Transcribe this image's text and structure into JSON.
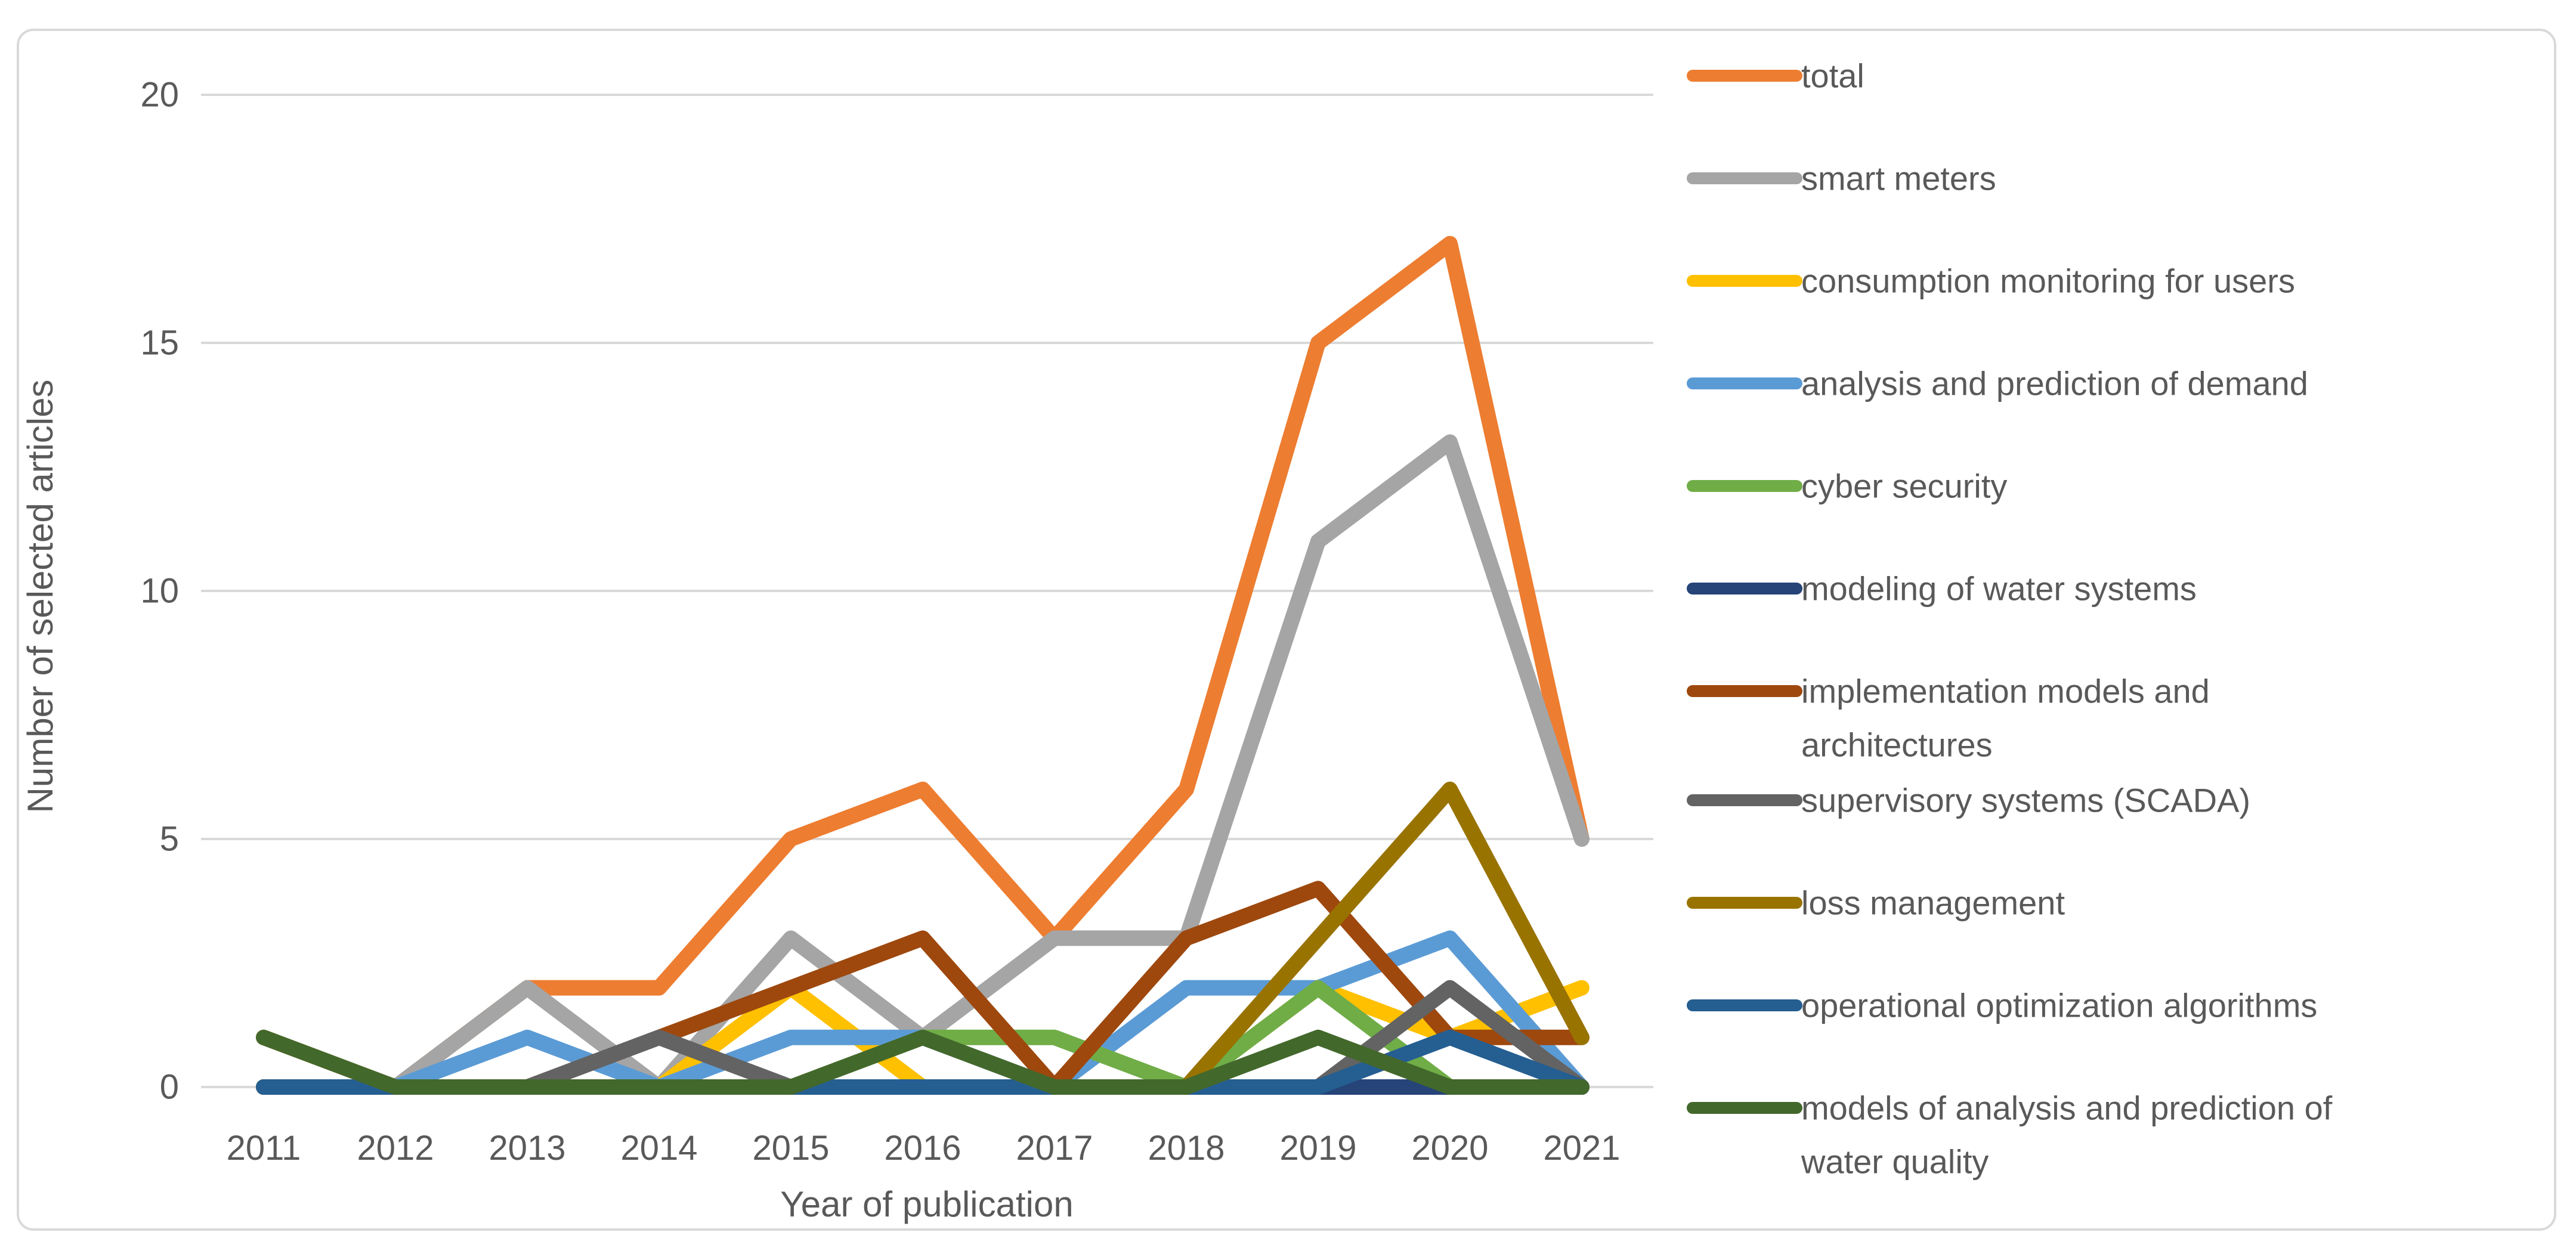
{
  "chart_data": {
    "type": "line",
    "title": "",
    "xlabel": "Year of publication",
    "ylabel": "Number of selected articles",
    "x": [
      2011,
      2012,
      2013,
      2014,
      2015,
      2016,
      2017,
      2018,
      2019,
      2020,
      2021
    ],
    "ylim": [
      0,
      20
    ],
    "yticks": [
      0,
      5,
      10,
      15,
      20
    ],
    "grid": true,
    "legend_position": "right",
    "series": [
      {
        "name": "total",
        "color": "#ED7D31",
        "values": [
          1,
          0,
          2,
          2,
          5,
          6,
          3,
          6,
          15,
          17,
          5
        ]
      },
      {
        "name": "smart meters",
        "color": "#A5A5A5",
        "values": [
          0,
          0,
          2,
          0,
          3,
          1,
          3,
          3,
          11,
          13,
          5
        ]
      },
      {
        "name": "consumption monitoring for users",
        "color": "#FFC000",
        "values": [
          0,
          0,
          0,
          0,
          2,
          0,
          0,
          0,
          2,
          1,
          2
        ]
      },
      {
        "name": "analysis and prediction of demand",
        "color": "#5B9BD5",
        "values": [
          0,
          0,
          1,
          0,
          1,
          1,
          0,
          2,
          2,
          3,
          0
        ]
      },
      {
        "name": "cyber security",
        "color": "#70AD47",
        "values": [
          0,
          0,
          0,
          0,
          0,
          1,
          1,
          0,
          2,
          0,
          0
        ]
      },
      {
        "name": "modeling of water systems",
        "color": "#264478",
        "values": [
          0,
          0,
          0,
          0,
          0,
          0,
          0,
          0,
          0,
          0,
          0
        ]
      },
      {
        "name": "implementation models and architectures",
        "color": "#9E480E",
        "values": [
          0,
          0,
          0,
          1,
          2,
          3,
          0,
          3,
          4,
          1,
          1
        ]
      },
      {
        "name": "supervisory systems (SCADA)",
        "color": "#636363",
        "values": [
          0,
          0,
          0,
          1,
          0,
          0,
          0,
          0,
          0,
          2,
          0
        ]
      },
      {
        "name": "loss management",
        "color": "#997300",
        "values": [
          0,
          0,
          0,
          0,
          0,
          0,
          0,
          0,
          3,
          6,
          1
        ]
      },
      {
        "name": "operational optimization algorithms",
        "color": "#255E91",
        "values": [
          0,
          0,
          0,
          0,
          0,
          0,
          0,
          0,
          0,
          1,
          0
        ]
      },
      {
        "name": "models of analysis and prediction of water quality",
        "color": "#43682B",
        "values": [
          1,
          0,
          0,
          0,
          0,
          1,
          0,
          0,
          1,
          0,
          0
        ]
      }
    ],
    "colors": {
      "gridline": "#D9D9D9",
      "frame_border": "#D9D9D9",
      "text": "#595959",
      "background": "#FFFFFF"
    }
  }
}
